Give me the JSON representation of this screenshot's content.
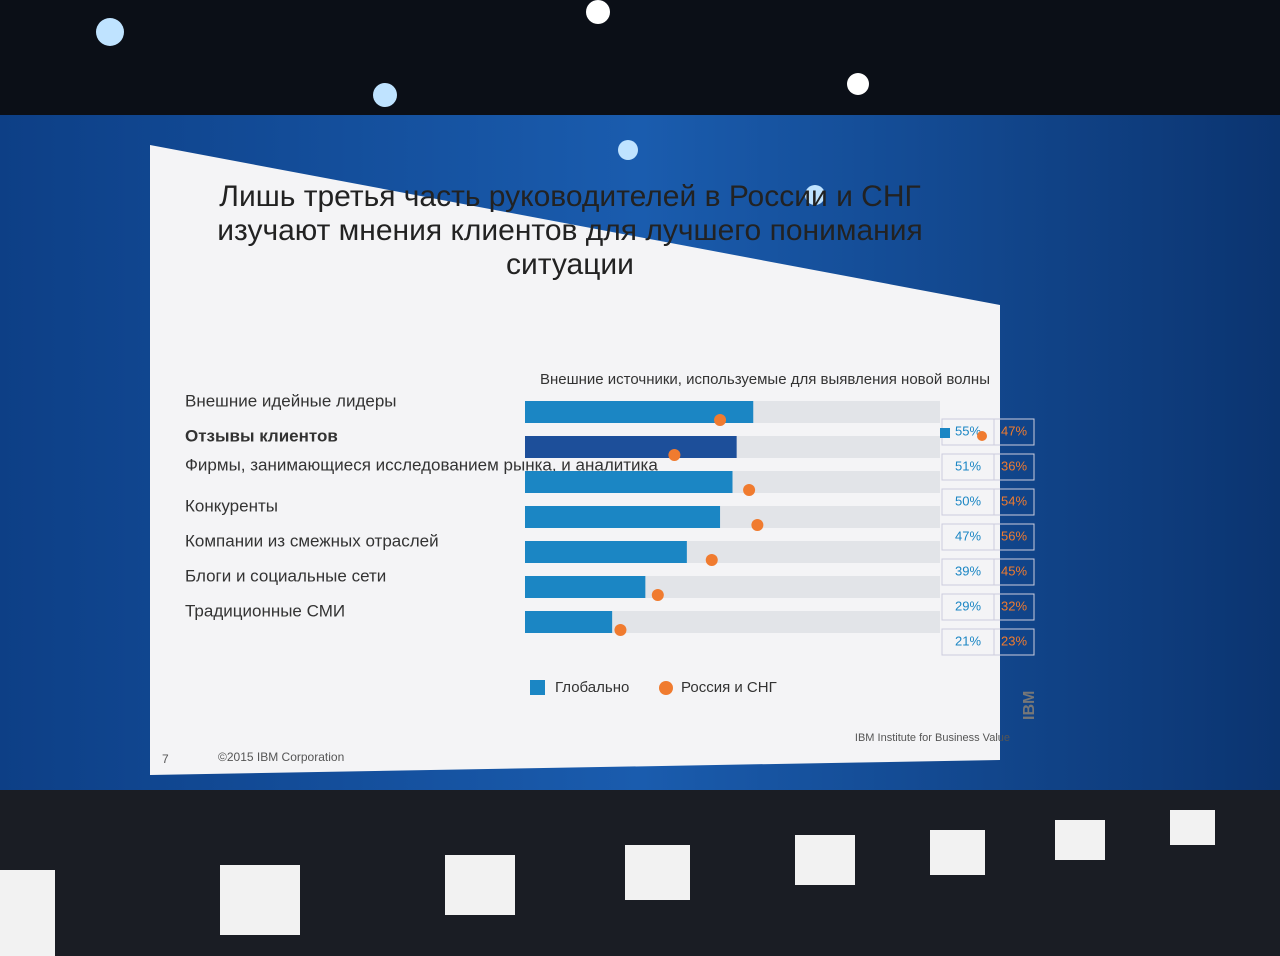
{
  "chart_data": {
    "type": "bar",
    "orientation": "horizontal",
    "title": "Лишь третья часть руководителей в России и СНГ изучают мнения клиентов для лучшего понимания ситуации",
    "subtitle": "Внешние источники, используемые для выявления новой волны",
    "categories": [
      "Внешние идейные лидеры",
      "Отзывы клиентов",
      "Фирмы, занимающиеся исследованием рынка, и аналитика",
      "Конкуренты",
      "Компании из смежных отраслей",
      "Блоги и социальные сети",
      "Традиционные СМИ"
    ],
    "highlight_index": 1,
    "highlight_color": "#1d4f9a",
    "xlim": [
      0,
      100
    ],
    "series": [
      {
        "name": "Глобально",
        "color": "#1b86c4",
        "values": [
          55,
          51,
          50,
          47,
          39,
          29,
          21
        ],
        "value_labels": [
          "55%",
          "51%",
          "50%",
          "47%",
          "39%",
          "29%",
          "21%"
        ]
      },
      {
        "name": "Россия и СНГ",
        "color": "#f07b2f",
        "marker": "circle",
        "values": [
          47,
          36,
          54,
          56,
          45,
          32,
          23
        ],
        "value_labels": [
          "47%",
          "36%",
          "54%",
          "56%",
          "45%",
          "32%",
          "23%"
        ]
      }
    ]
  },
  "footer": {
    "page": "7",
    "copyright": "©2015 IBM Corporation",
    "institute": "IBM Institute for Business Value",
    "logo": "IBM"
  }
}
